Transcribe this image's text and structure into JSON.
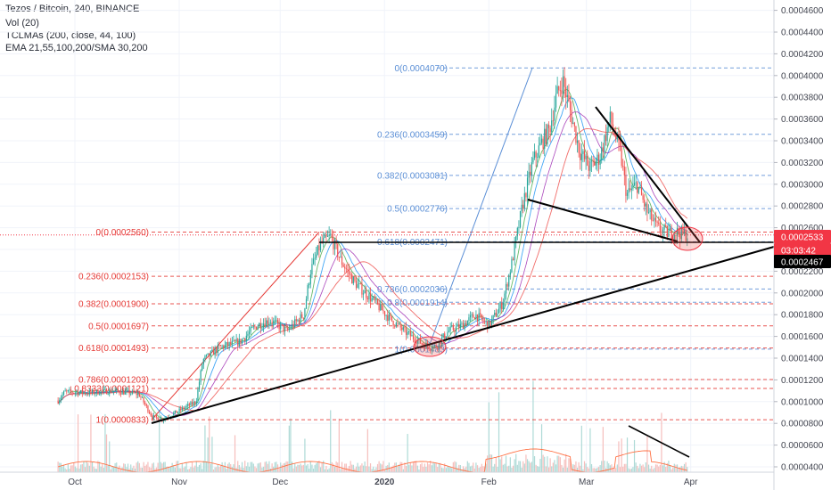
{
  "header": {
    "title": "Tezos / Bitcoin, 240, BINANCE",
    "vol": "Vol (20)",
    "tclmas": "TCLMAs (200, close, 44, 100)",
    "ema": "EMA 21,55,100,200/SMA 30,200"
  },
  "colors": {
    "candle_up": "#26a69a",
    "candle_down": "#ef5350",
    "fib_red": "#e53935",
    "fib_blue": "#5b8fd6",
    "trendline": "#000000",
    "price_badge_red": "#f23645",
    "price_badge_black": "#000000"
  },
  "chart_data": {
    "type": "candlestick",
    "symbol": "Tezos / Bitcoin",
    "timeframe": "240",
    "exchange": "BINANCE",
    "x_ticks": [
      "Oct",
      "Nov",
      "Dec",
      "2020",
      "Feb",
      "Mar",
      "Apr"
    ],
    "y_ticks": [
      "0.0004600",
      "0.0004400",
      "0.0004200",
      "0.0004000",
      "0.0003800",
      "0.0003600",
      "0.0003400",
      "0.0003200",
      "0.0003000",
      "0.0002800",
      "0.0002600",
      "0.0002400",
      "0.0002200",
      "0.0002000",
      "0.0001800",
      "0.0001600",
      "0.0001400",
      "0.0001200",
      "0.0001000",
      "0.0000800",
      "0.0000600",
      "0.0000400"
    ],
    "ylim": [
      3.8e-05,
      0.000468
    ],
    "price_path": [
      {
        "date": "2019-09-26",
        "price": 0.000101
      },
      {
        "date": "2019-09-28",
        "price": 0.000109
      },
      {
        "date": "2019-10-05",
        "price": 0.000108
      },
      {
        "date": "2019-10-12",
        "price": 0.00011
      },
      {
        "date": "2019-10-20",
        "price": 0.000107
      },
      {
        "date": "2019-10-24",
        "price": 8.6e-05
      },
      {
        "date": "2019-10-27",
        "price": 8.4e-05
      },
      {
        "date": "2019-10-31",
        "price": 9e-05
      },
      {
        "date": "2019-11-06",
        "price": 0.0001
      },
      {
        "date": "2019-11-08",
        "price": 0.000138
      },
      {
        "date": "2019-11-13",
        "price": 0.00015
      },
      {
        "date": "2019-11-19",
        "price": 0.000155
      },
      {
        "date": "2019-11-24",
        "price": 0.00017
      },
      {
        "date": "2019-11-28",
        "price": 0.000175
      },
      {
        "date": "2019-12-03",
        "price": 0.000165
      },
      {
        "date": "2019-12-08",
        "price": 0.00018
      },
      {
        "date": "2019-12-10",
        "price": 0.00022
      },
      {
        "date": "2019-12-13",
        "price": 0.000245
      },
      {
        "date": "2019-12-16",
        "price": 0.000252
      },
      {
        "date": "2019-12-19",
        "price": 0.00023
      },
      {
        "date": "2019-12-23",
        "price": 0.00021
      },
      {
        "date": "2019-12-28",
        "price": 0.000195
      },
      {
        "date": "2020-01-03",
        "price": 0.000175
      },
      {
        "date": "2020-01-08",
        "price": 0.000162
      },
      {
        "date": "2020-01-13",
        "price": 0.000152
      },
      {
        "date": "2020-01-16",
        "price": 0.00015
      },
      {
        "date": "2020-01-20",
        "price": 0.000165
      },
      {
        "date": "2020-01-24",
        "price": 0.00017
      },
      {
        "date": "2020-01-28",
        "price": 0.00018
      },
      {
        "date": "2020-02-01",
        "price": 0.00017
      },
      {
        "date": "2020-02-05",
        "price": 0.00019
      },
      {
        "date": "2020-02-08",
        "price": 0.00023
      },
      {
        "date": "2020-02-11",
        "price": 0.00028
      },
      {
        "date": "2020-02-14",
        "price": 0.00032
      },
      {
        "date": "2020-02-17",
        "price": 0.00034
      },
      {
        "date": "2020-02-19",
        "price": 0.00035
      },
      {
        "date": "2020-02-21",
        "price": 0.00038
      },
      {
        "date": "2020-02-23",
        "price": 0.000395
      },
      {
        "date": "2020-02-25",
        "price": 0.00037
      },
      {
        "date": "2020-02-28",
        "price": 0.00033
      },
      {
        "date": "2020-03-02",
        "price": 0.000315
      },
      {
        "date": "2020-03-05",
        "price": 0.000325
      },
      {
        "date": "2020-03-08",
        "price": 0.00036
      },
      {
        "date": "2020-03-11",
        "price": 0.00033
      },
      {
        "date": "2020-03-13",
        "price": 0.00029
      },
      {
        "date": "2020-03-16",
        "price": 0.0003
      },
      {
        "date": "2020-03-19",
        "price": 0.000275
      },
      {
        "date": "2020-03-22",
        "price": 0.00026
      },
      {
        "date": "2020-03-25",
        "price": 0.000255
      },
      {
        "date": "2020-03-28",
        "price": 0.000256
      },
      {
        "date": "2020-03-31",
        "price": 0.0002533
      }
    ],
    "fib_red": {
      "levels": [
        {
          "label": "0(0.0002560)",
          "value": 0.000256
        },
        {
          "label": "0.236(0.0002153)",
          "value": 0.0002153
        },
        {
          "label": "0.382(0.0001900)",
          "value": 0.00019
        },
        {
          "label": "0.5(0.0001697)",
          "value": 0.0001697
        },
        {
          "label": "0.618(0.0001493)",
          "value": 0.0001493
        },
        {
          "label": "0.786(0.0001203)",
          "value": 0.0001203
        },
        {
          "label": "0.8333(0.0001121)",
          "value": 0.0001121
        },
        {
          "label": "1(0.0000833)",
          "value": 8.33e-05
        }
      ]
    },
    "fib_blue": {
      "levels": [
        {
          "label": "0(0.0004070)",
          "value": 0.000407
        },
        {
          "label": "0.236(0.0003459)",
          "value": 0.0003459
        },
        {
          "label": "0.382(0.0003081)",
          "value": 0.0003081
        },
        {
          "label": "0.5(0.0002776)",
          "value": 0.0002776
        },
        {
          "label": "0.618(0.0002471)",
          "value": 0.0002471
        },
        {
          "label": "0.786(0.0002036)",
          "value": 0.0002036
        },
        {
          "label": "0.8(0.0001914)",
          "value": 0.0001914
        },
        {
          "label": "1(0.0001483)",
          "value": 0.0001483
        }
      ]
    },
    "price_badges": [
      {
        "label": "0.0002533",
        "value": 0.0002533,
        "kind": "last"
      },
      {
        "label": "03:03:42",
        "value": 0.000249,
        "kind": "countdown"
      },
      {
        "label": "0.0002467",
        "value": 0.000244,
        "kind": "line"
      }
    ]
  }
}
